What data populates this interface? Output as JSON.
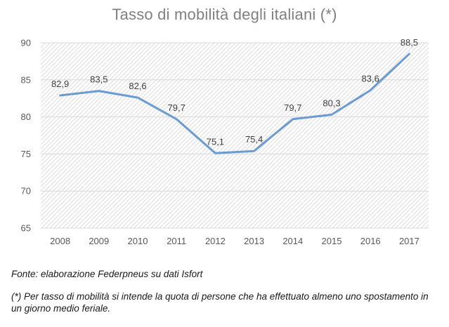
{
  "chart_data": {
    "type": "line",
    "title": "Tasso di mobilità degli italiani (*)",
    "xlabel": "",
    "ylabel": "",
    "categories": [
      "2008",
      "2009",
      "2010",
      "2011",
      "2012",
      "2013",
      "2014",
      "2015",
      "2016",
      "2017"
    ],
    "series": [
      {
        "values": [
          82.9,
          83.5,
          82.6,
          79.7,
          75.1,
          75.4,
          79.7,
          80.3,
          83.6,
          88.5
        ],
        "labels": [
          "82,9",
          "83,5",
          "82,6",
          "79,7",
          "75,1",
          "75,4",
          "79,7",
          "80,3",
          "83,6",
          "88,5"
        ],
        "color": "#6a9bd1"
      }
    ],
    "ylim": [
      65,
      90
    ],
    "yticks": [
      "65",
      "70",
      "75",
      "80",
      "85",
      "90"
    ],
    "ytick_values": [
      65,
      70,
      75,
      80,
      85,
      90
    ],
    "grid": true,
    "background_pattern": "diagonal-hatch",
    "legend": "none"
  },
  "notes": {
    "source": "Fonte: elaborazione Federpneus su dati Isfort",
    "footnote": "(*) Per tasso di mobilità si intende la quota di persone che ha effettuato almeno uno spostamento in un giorno medio feriale."
  }
}
